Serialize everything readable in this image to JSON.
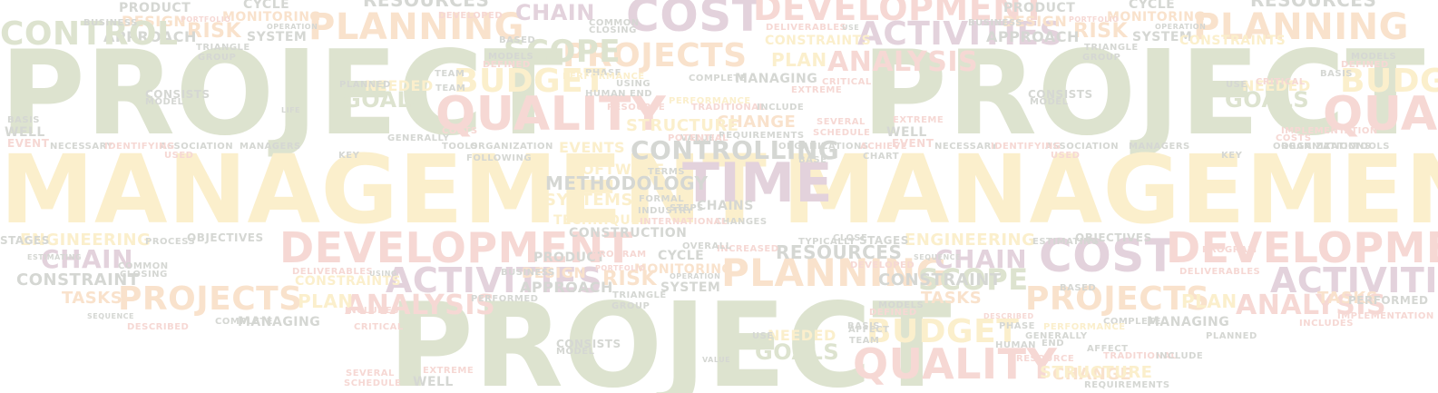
{
  "palette": {
    "olive": "#dde3cf",
    "yellow": "#fbefcc",
    "pink": "#f6d8d4",
    "mauve": "#e3d2dc",
    "gray": "#d5d7d3",
    "peach": "#f9e2cc"
  },
  "words": [
    {
      "text": "PROJECT",
      "c": "olive"
    },
    {
      "text": "MANAGEMENT",
      "c": "yellow"
    },
    {
      "text": "PROJECT",
      "c": "olive"
    },
    {
      "text": "MANAGEMENT",
      "c": "yellow"
    },
    {
      "text": "PROJECT",
      "c": "olive"
    },
    {
      "text": "COST",
      "c": "mauve"
    },
    {
      "text": "COST",
      "c": "mauve"
    },
    {
      "text": "DEVELOPMENT",
      "c": "pink"
    },
    {
      "text": "DEVELOPMENT",
      "c": "pink"
    },
    {
      "text": "DEVELOPMENT",
      "c": "pink"
    },
    {
      "text": "QUALITY",
      "c": "pink"
    },
    {
      "text": "QUALITY",
      "c": "pink"
    },
    {
      "text": "QUA",
      "c": "pink"
    },
    {
      "text": "TIME",
      "c": "mauve"
    },
    {
      "text": "PLANNING",
      "c": "peach"
    },
    {
      "text": "PLANNING",
      "c": "peach"
    },
    {
      "text": "PLANNING",
      "c": "peach"
    },
    {
      "text": "ACTIVITIES",
      "c": "mauve"
    },
    {
      "text": "ACTIVITIES",
      "c": "mauve"
    },
    {
      "text": "ACTIVITIES",
      "c": "mauve"
    },
    {
      "text": "PROJECTS",
      "c": "peach"
    },
    {
      "text": "PROJECTS",
      "c": "peach"
    },
    {
      "text": "PROJECTS",
      "c": "peach"
    },
    {
      "text": "BUDGET",
      "c": "yellow"
    },
    {
      "text": "BUDGET",
      "c": "yellow"
    },
    {
      "text": "BUDG",
      "c": "yellow"
    },
    {
      "text": "SCOPE",
      "c": "olive"
    },
    {
      "text": "SCOPE",
      "c": "olive"
    },
    {
      "text": "ANALYSIS",
      "c": "pink"
    },
    {
      "text": "ANALYSIS",
      "c": "pink"
    },
    {
      "text": "ANALYSIS",
      "c": "pink"
    },
    {
      "text": "CONTROLLING",
      "c": "gray"
    },
    {
      "text": "CHAIN",
      "c": "mauve"
    },
    {
      "text": "CHAIN",
      "c": "mauve"
    },
    {
      "text": "CHAIN",
      "c": "mauve"
    },
    {
      "text": "RESOURCES",
      "c": "gray"
    },
    {
      "text": "RESOURCES",
      "c": "gray"
    },
    {
      "text": "RESOURCES",
      "c": "gray"
    },
    {
      "text": "ENGINEERING",
      "c": "yellow"
    },
    {
      "text": "ENGINEERING",
      "c": "yellow"
    },
    {
      "text": "METHODOLOGY",
      "c": "gray"
    },
    {
      "text": "GOALS",
      "c": "olive"
    },
    {
      "text": "GOALS",
      "c": "olive"
    },
    {
      "text": "GOALS",
      "c": "olive"
    },
    {
      "text": "RISK",
      "c": "peach"
    },
    {
      "text": "RISK",
      "c": "peach"
    },
    {
      "text": "RISK",
      "c": "peach"
    },
    {
      "text": "CHANGE",
      "c": "peach"
    },
    {
      "text": "CHANGE",
      "c": "peach"
    },
    {
      "text": "STRUCTURE",
      "c": "yellow"
    },
    {
      "text": "STRUCTURE",
      "c": "yellow"
    },
    {
      "text": "SYSTEMS",
      "c": "yellow"
    },
    {
      "text": "PLAN",
      "c": "yellow"
    },
    {
      "text": "PLAN",
      "c": "yellow"
    },
    {
      "text": "PLAN",
      "c": "yellow"
    },
    {
      "text": "CONSTRAINT",
      "c": "gray"
    },
    {
      "text": "CONSTRAINT",
      "c": "gray"
    },
    {
      "text": "TASKS",
      "c": "peach"
    },
    {
      "text": "TASKS",
      "c": "peach"
    },
    {
      "text": "TASKS",
      "c": "peach"
    },
    {
      "text": "CONSTRUCTION",
      "c": "gray"
    },
    {
      "text": "CHAINS",
      "c": "gray"
    },
    {
      "text": "SYSTEM",
      "c": "gray"
    },
    {
      "text": "SYSTEM",
      "c": "gray"
    },
    {
      "text": "SYSTEM",
      "c": "gray"
    },
    {
      "text": "APPROACH",
      "c": "gray"
    },
    {
      "text": "APPROACH",
      "c": "gray"
    },
    {
      "text": "APPROACH",
      "c": "gray"
    },
    {
      "text": "DESIGN",
      "c": "peach"
    },
    {
      "text": "DESIGN",
      "c": "peach"
    },
    {
      "text": "DESIGN",
      "c": "peach"
    },
    {
      "text": "PRODUCT",
      "c": "gray"
    },
    {
      "text": "PRODUCT",
      "c": "gray"
    },
    {
      "text": "PRODUCT",
      "c": "gray"
    },
    {
      "text": "CYCLE",
      "c": "gray"
    },
    {
      "text": "CYCLE",
      "c": "gray"
    },
    {
      "text": "CYCLE",
      "c": "gray"
    },
    {
      "text": "MONITORING",
      "c": "peach"
    },
    {
      "text": "MONITORING",
      "c": "peach"
    },
    {
      "text": "MONITORING",
      "c": "peach"
    },
    {
      "text": "CONSTRAINTS",
      "c": "yellow"
    },
    {
      "text": "CONSTRAINTS",
      "c": "yellow"
    },
    {
      "text": "CONSTRAINTS",
      "c": "yellow"
    },
    {
      "text": "MANAGING",
      "c": "gray"
    },
    {
      "text": "MANAGING",
      "c": "gray"
    },
    {
      "text": "MANAGING",
      "c": "gray"
    },
    {
      "text": "CONTROL",
      "c": "olive"
    },
    {
      "text": "EVENTS",
      "c": "yellow"
    },
    {
      "text": "SOFTWARE",
      "c": "yellow"
    },
    {
      "text": "TECHNIQUES",
      "c": "yellow"
    },
    {
      "text": "OBJECTIVES",
      "c": "gray"
    },
    {
      "text": "OBJECTIVES",
      "c": "gray"
    },
    {
      "text": "STAGES",
      "c": "gray"
    },
    {
      "text": "STAGES",
      "c": "gray"
    },
    {
      "text": "NEEDED",
      "c": "yellow"
    },
    {
      "text": "NEEDED",
      "c": "yellow"
    },
    {
      "text": "NEEDED",
      "c": "yellow"
    },
    {
      "text": "PERFORMED",
      "c": "gray"
    },
    {
      "text": "PERFORMED",
      "c": "gray"
    },
    {
      "text": "COMPLETE",
      "c": "gray"
    },
    {
      "text": "COMPLETE",
      "c": "gray"
    },
    {
      "text": "COMPLETE",
      "c": "gray"
    },
    {
      "text": "DELIVERABLES",
      "c": "pink"
    },
    {
      "text": "DELIVERABLES",
      "c": "pink"
    },
    {
      "text": "DELIVERABLES",
      "c": "pink"
    },
    {
      "text": "DEFINED",
      "c": "pink"
    },
    {
      "text": "DEFINED",
      "c": "pink"
    },
    {
      "text": "DEFINED",
      "c": "pink"
    },
    {
      "text": "DEVELOPED",
      "c": "pink"
    },
    {
      "text": "DEVELOPED",
      "c": "pink"
    },
    {
      "text": "ASSOCIATION",
      "c": "gray"
    },
    {
      "text": "ASSOCIATION",
      "c": "gray"
    },
    {
      "text": "ORGANIZATION",
      "c": "gray"
    },
    {
      "text": "ORGANIZATION",
      "c": "gray"
    },
    {
      "text": "ORGANIZATIONS",
      "c": "gray"
    },
    {
      "text": "ORGANIZATIONS",
      "c": "gray"
    },
    {
      "text": "MANAGERS",
      "c": "gray"
    },
    {
      "text": "MANAGERS",
      "c": "gray"
    },
    {
      "text": "NECESSARY",
      "c": "gray"
    },
    {
      "text": "NECESSARY",
      "c": "gray"
    },
    {
      "text": "IDENTIFYING",
      "c": "pink"
    },
    {
      "text": "IDENTIFYING",
      "c": "pink"
    },
    {
      "text": "EVENT",
      "c": "pink"
    },
    {
      "text": "EVENT",
      "c": "pink"
    },
    {
      "text": "WELL",
      "c": "gray"
    },
    {
      "text": "WELL",
      "c": "gray"
    },
    {
      "text": "WELL",
      "c": "gray"
    },
    {
      "text": "TOOLS",
      "c": "gray"
    },
    {
      "text": "TOOLS",
      "c": "gray"
    },
    {
      "text": "REQUIREMENTS",
      "c": "gray"
    },
    {
      "text": "REQUIREMENTS",
      "c": "gray"
    },
    {
      "text": "SCHEDULE",
      "c": "pink"
    },
    {
      "text": "SCHEDULE",
      "c": "pink"
    },
    {
      "text": "SEVERAL",
      "c": "pink"
    },
    {
      "text": "SEVERAL",
      "c": "pink"
    },
    {
      "text": "TRADITIONAL",
      "c": "pink"
    },
    {
      "text": "TRADITIONAL",
      "c": "pink"
    },
    {
      "text": "INCLUDE",
      "c": "gray"
    },
    {
      "text": "INCLUDE",
      "c": "gray"
    },
    {
      "text": "INCLUDES",
      "c": "pink"
    },
    {
      "text": "INCLUDES",
      "c": "pink"
    },
    {
      "text": "HUMAN",
      "c": "gray"
    },
    {
      "text": "HUMAN",
      "c": "gray"
    },
    {
      "text": "PHASE",
      "c": "gray"
    },
    {
      "text": "PHASE",
      "c": "gray"
    },
    {
      "text": "RESOURCE",
      "c": "pink"
    },
    {
      "text": "RESOURCE",
      "c": "pink"
    },
    {
      "text": "BUSINESS",
      "c": "gray"
    },
    {
      "text": "BUSINESS",
      "c": "gray"
    },
    {
      "text": "BUSINESS",
      "c": "gray"
    },
    {
      "text": "TERMS",
      "c": "gray"
    },
    {
      "text": "FORMAL",
      "c": "gray"
    },
    {
      "text": "STEPS",
      "c": "gray"
    },
    {
      "text": "INDUSTRY",
      "c": "gray"
    },
    {
      "text": "CHANGES",
      "c": "gray"
    },
    {
      "text": "INTERNATIONAL",
      "c": "pink"
    },
    {
      "text": "INCREASED",
      "c": "pink"
    },
    {
      "text": "TYPICALLY",
      "c": "gray"
    },
    {
      "text": "CLOSE",
      "c": "gray"
    },
    {
      "text": "PROGRAM",
      "c": "pink"
    },
    {
      "text": "PROGRAM",
      "c": "pink"
    },
    {
      "text": "USED",
      "c": "pink"
    },
    {
      "text": "USED",
      "c": "pink"
    },
    {
      "text": "KEY",
      "c": "gray"
    },
    {
      "text": "KEY",
      "c": "gray"
    },
    {
      "text": "MODELS",
      "c": "gray"
    },
    {
      "text": "MODELS",
      "c": "gray"
    },
    {
      "text": "MODELS",
      "c": "gray"
    },
    {
      "text": "CRITICAL",
      "c": "pink"
    },
    {
      "text": "CRITICAL",
      "c": "pink"
    },
    {
      "text": "CRITICAL",
      "c": "pink"
    },
    {
      "text": "CONSISTS",
      "c": "gray"
    },
    {
      "text": "CONSISTS",
      "c": "gray"
    },
    {
      "text": "CONSISTS",
      "c": "gray"
    },
    {
      "text": "MODEL",
      "c": "gray"
    },
    {
      "text": "MODEL",
      "c": "gray"
    },
    {
      "text": "MODEL",
      "c": "gray"
    },
    {
      "text": "TRIANGLE",
      "c": "gray"
    },
    {
      "text": "TRIANGLE",
      "c": "gray"
    },
    {
      "text": "TRIANGLE",
      "c": "gray"
    },
    {
      "text": "GROUP",
      "c": "gray"
    },
    {
      "text": "GROUP",
      "c": "gray"
    },
    {
      "text": "GROUP",
      "c": "gray"
    },
    {
      "text": "PORTFOLIO",
      "c": "pink"
    },
    {
      "text": "PORTFOLIO",
      "c": "pink"
    },
    {
      "text": "PORTFOLIO",
      "c": "pink"
    },
    {
      "text": "OPERATION",
      "c": "gray"
    },
    {
      "text": "OPERATION",
      "c": "gray"
    },
    {
      "text": "OPERATION",
      "c": "gray"
    },
    {
      "text": "COMMON",
      "c": "gray"
    },
    {
      "text": "COMMON",
      "c": "gray"
    },
    {
      "text": "CLOSING",
      "c": "gray"
    },
    {
      "text": "CLOSING",
      "c": "gray"
    },
    {
      "text": "BASED",
      "c": "gray"
    },
    {
      "text": "BASED",
      "c": "gray"
    },
    {
      "text": "END",
      "c": "gray"
    },
    {
      "text": "END",
      "c": "gray"
    },
    {
      "text": "TEAM",
      "c": "gray"
    },
    {
      "text": "TEAM",
      "c": "gray"
    },
    {
      "text": "TEAM",
      "c": "gray"
    },
    {
      "text": "BASIS",
      "c": "gray"
    },
    {
      "text": "BASIS",
      "c": "gray"
    },
    {
      "text": "BASIS",
      "c": "gray"
    },
    {
      "text": "EXTREME",
      "c": "pink"
    },
    {
      "text": "EXTREME",
      "c": "pink"
    },
    {
      "text": "EXTREME",
      "c": "pink"
    },
    {
      "text": "PLANNED",
      "c": "gray"
    },
    {
      "text": "PLANNED",
      "c": "gray"
    },
    {
      "text": "USE",
      "c": "gray"
    },
    {
      "text": "USE",
      "c": "gray"
    },
    {
      "text": "USE",
      "c": "gray"
    },
    {
      "text": "USING",
      "c": "gray"
    },
    {
      "text": "USING",
      "c": "gray"
    },
    {
      "text": "GENERALLY",
      "c": "gray"
    },
    {
      "text": "GENERALLY",
      "c": "gray"
    },
    {
      "text": "COSTS",
      "c": "pink"
    },
    {
      "text": "COSTS",
      "c": "pink"
    },
    {
      "text": "IMPLEMENTATION",
      "c": "pink"
    },
    {
      "text": "IMPLEMENTATION",
      "c": "pink"
    },
    {
      "text": "PROCESS",
      "c": "gray"
    },
    {
      "text": "ESTIMATING",
      "c": "gray"
    },
    {
      "text": "ESTIMATING",
      "c": "gray"
    },
    {
      "text": "SEQUENCE",
      "c": "gray"
    },
    {
      "text": "SEQUENCE",
      "c": "gray"
    },
    {
      "text": "DESCRIBED",
      "c": "pink"
    },
    {
      "text": "DESCRIBED",
      "c": "pink"
    },
    {
      "text": "PERFORMANCE",
      "c": "yellow"
    },
    {
      "text": "PERFORMANCE",
      "c": "yellow"
    },
    {
      "text": "PERFORMANCE",
      "c": "yellow"
    },
    {
      "text": "AFFECT",
      "c": "gray"
    },
    {
      "text": "AFFECT",
      "c": "gray"
    },
    {
      "text": "BASE",
      "c": "gray"
    },
    {
      "text": "FOLLOWING",
      "c": "gray"
    },
    {
      "text": "LIFE",
      "c": "gray"
    },
    {
      "text": "VALUE",
      "c": "gray"
    },
    {
      "text": "VALUE",
      "c": "gray"
    },
    {
      "text": "OVERALL",
      "c": "gray"
    },
    {
      "text": "POTENTIAL",
      "c": "pink"
    },
    {
      "text": "ACHIEVE",
      "c": "pink"
    },
    {
      "text": "CHART",
      "c": "gray"
    },
    {
      "text": "PART",
      "c": "pink"
    }
  ]
}
